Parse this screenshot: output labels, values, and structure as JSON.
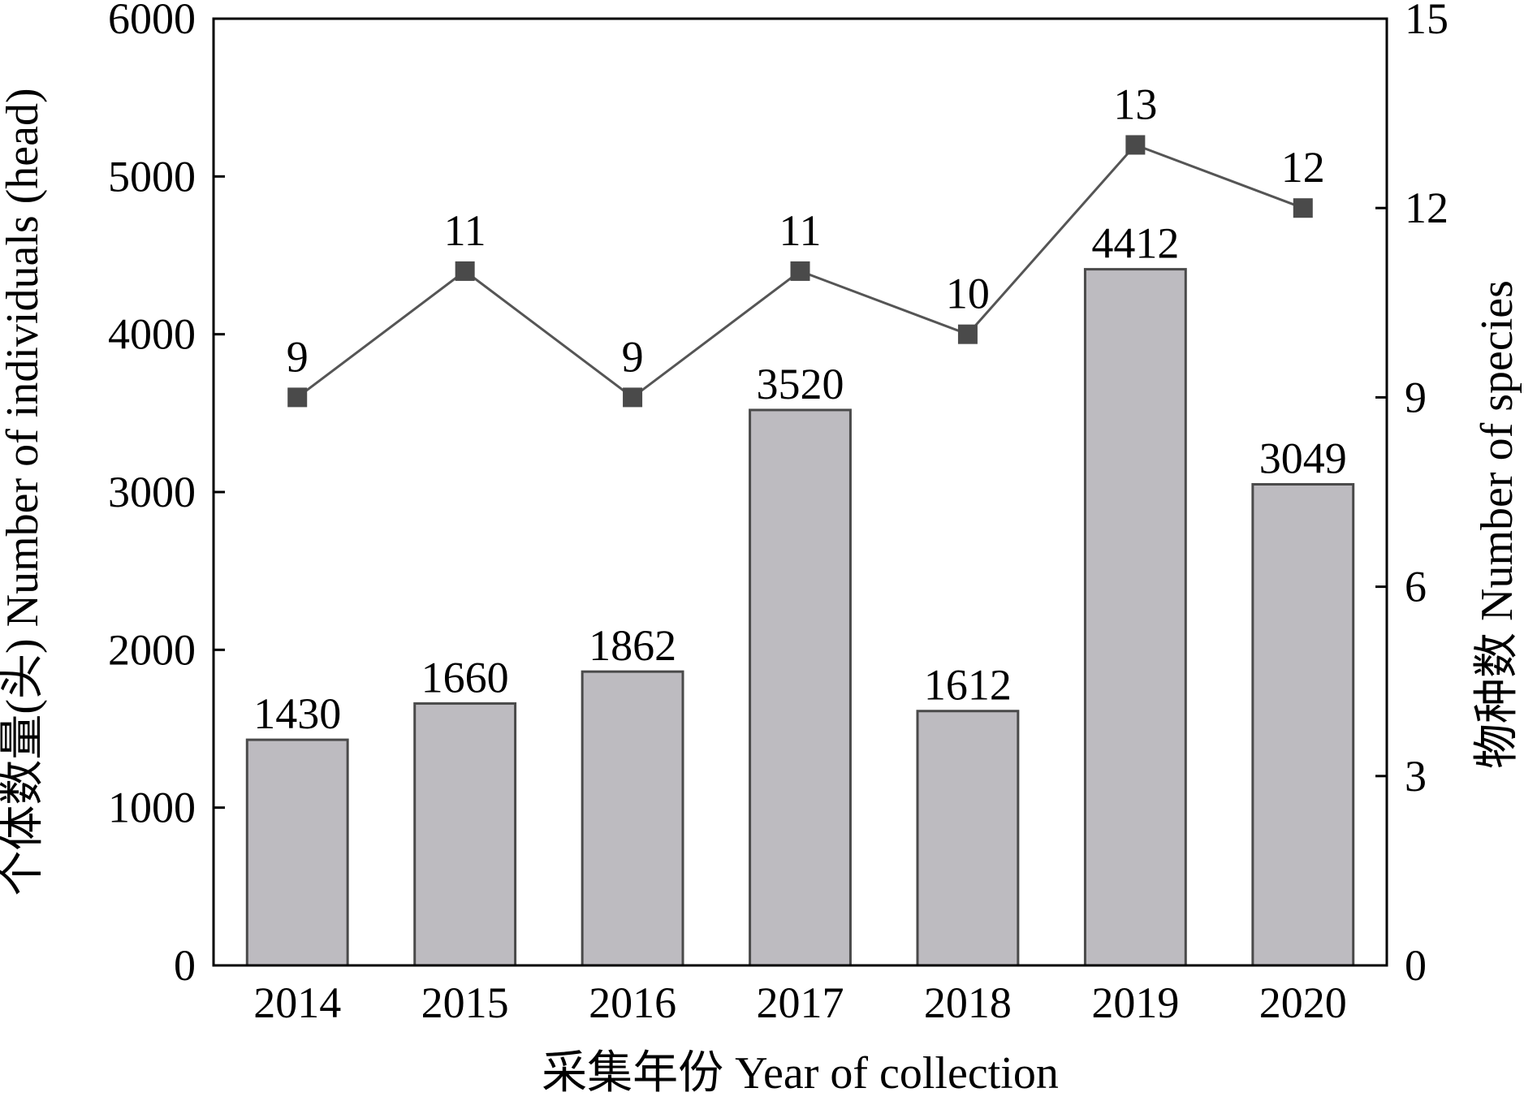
{
  "chart_data": {
    "type": "bar",
    "categories": [
      "2014",
      "2015",
      "2016",
      "2017",
      "2018",
      "2019",
      "2020"
    ],
    "series": [
      {
        "type": "bar",
        "axis": "left",
        "values": [
          1430,
          1660,
          1862,
          3520,
          1612,
          4412,
          3049
        ],
        "data_labels": [
          "1430",
          "1660",
          "1862",
          "3520",
          "1612",
          "4412",
          "3049"
        ]
      },
      {
        "type": "line",
        "axis": "right",
        "values": [
          9,
          11,
          9,
          11,
          10,
          13,
          12
        ],
        "data_labels": [
          "9",
          "11",
          "9",
          "11",
          "10",
          "13",
          "12"
        ]
      }
    ],
    "xlabel": "采集年份 Year of collection",
    "ylabel": "个体数量(头) Number of individuals (head)",
    "y2label": "物种数 Number of species",
    "ylim": [
      0,
      6000
    ],
    "y2lim": [
      0,
      15
    ],
    "yticks": [
      "0",
      "1000",
      "2000",
      "3000",
      "4000",
      "5000",
      "6000"
    ],
    "y2ticks": [
      "0",
      "3",
      "6",
      "9",
      "12",
      "15"
    ],
    "grid": false,
    "legend": "none",
    "colors": {
      "bar_fill": "#bdbbc0",
      "bar_stroke": "#4a4a4a",
      "line": "#555555",
      "marker": "#4a4a4a"
    }
  }
}
